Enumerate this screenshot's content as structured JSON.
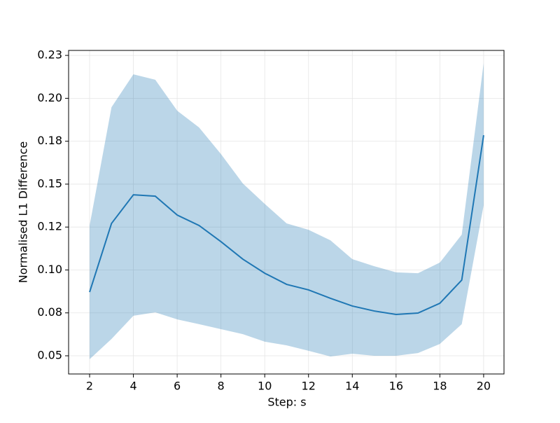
{
  "chart_data": {
    "type": "line",
    "x_label": "Step: s",
    "y_label": "Normalised L1 Difference",
    "x": [
      2,
      3,
      4,
      5,
      6,
      7,
      8,
      9,
      10,
      11,
      12,
      13,
      14,
      15,
      16,
      17,
      18,
      19,
      20
    ],
    "series": [
      {
        "color": "#1f77b4",
        "band_color": "#1f77b4",
        "values": [
          0.0871,
          0.1271,
          0.1438,
          0.143,
          0.132,
          0.1259,
          0.1165,
          0.1063,
          0.0981,
          0.0916,
          0.0884,
          0.0835,
          0.079,
          0.0761,
          0.0741,
          0.0749,
          0.0806,
          0.0941,
          0.1785
        ],
        "upper": [
          0.1259,
          0.1948,
          0.214,
          0.2108,
          0.1928,
          0.183,
          0.1675,
          0.1504,
          0.1385,
          0.1271,
          0.1234,
          0.1173,
          0.1063,
          0.1022,
          0.0986,
          0.0981,
          0.1043,
          0.1206,
          0.2205
        ],
        "lower": [
          0.048,
          0.0598,
          0.0733,
          0.0753,
          0.0712,
          0.0684,
          0.0655,
          0.0626,
          0.0582,
          0.0561,
          0.0529,
          0.0496,
          0.0512,
          0.05,
          0.05,
          0.0516,
          0.0569,
          0.0684,
          0.1377
        ]
      }
    ],
    "xlim": [
      1.04,
      20.93
    ],
    "ylim": [
      0.0394,
      0.2279
    ],
    "xticks": [
      2,
      4,
      6,
      8,
      10,
      12,
      14,
      16,
      18,
      20
    ],
    "yticks": [
      0.05,
      {
        "value": 0.075,
        "label": "0.08"
      },
      {
        "value": 0.1,
        "label": "0.10"
      },
      {
        "value": 0.125,
        "label": "0.12"
      },
      0.15,
      {
        "value": 0.175,
        "label": "0.18"
      },
      {
        "value": 0.2,
        "label": "0.20"
      },
      {
        "value": 0.225,
        "label": "0.23"
      }
    ],
    "grid": true
  }
}
